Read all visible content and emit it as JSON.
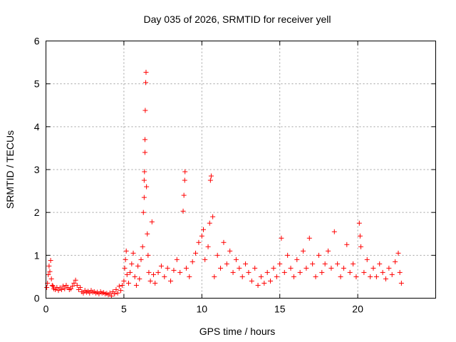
{
  "chart_data": {
    "type": "scatter",
    "title": "Day 035 of 2026, SRMTID for receiver yell",
    "xlabel": "GPS time / hours",
    "ylabel": "SRMTID / TECUs",
    "xlim": [
      0,
      25
    ],
    "ylim": [
      0,
      6
    ],
    "xticks": [
      0,
      5,
      10,
      15,
      20
    ],
    "yticks": [
      0,
      1,
      2,
      3,
      4,
      5,
      6
    ],
    "grid": true,
    "marker": "plus",
    "series_color": "#ff0000",
    "series": [
      {
        "name": "SRMTID",
        "points": [
          [
            0.05,
            0.25
          ],
          [
            0.1,
            0.35
          ],
          [
            0.15,
            0.55
          ],
          [
            0.2,
            0.75
          ],
          [
            0.25,
            0.62
          ],
          [
            0.3,
            0.88
          ],
          [
            0.35,
            0.45
          ],
          [
            0.4,
            0.3
          ],
          [
            0.45,
            0.28
          ],
          [
            0.5,
            0.22
          ],
          [
            0.6,
            0.2
          ],
          [
            0.7,
            0.25
          ],
          [
            0.8,
            0.18
          ],
          [
            0.9,
            0.24
          ],
          [
            1.0,
            0.2
          ],
          [
            1.1,
            0.28
          ],
          [
            1.2,
            0.22
          ],
          [
            1.3,
            0.3
          ],
          [
            1.4,
            0.25
          ],
          [
            1.5,
            0.2
          ],
          [
            1.6,
            0.22
          ],
          [
            1.7,
            0.28
          ],
          [
            1.8,
            0.35
          ],
          [
            1.9,
            0.42
          ],
          [
            2.0,
            0.3
          ],
          [
            2.1,
            0.2
          ],
          [
            2.2,
            0.25
          ],
          [
            2.3,
            0.15
          ],
          [
            2.4,
            0.12
          ],
          [
            2.5,
            0.18
          ],
          [
            2.6,
            0.14
          ],
          [
            2.7,
            0.16
          ],
          [
            2.8,
            0.12
          ],
          [
            2.9,
            0.18
          ],
          [
            3.0,
            0.14
          ],
          [
            3.1,
            0.15
          ],
          [
            3.2,
            0.12
          ],
          [
            3.3,
            0.14
          ],
          [
            3.4,
            0.1
          ],
          [
            3.5,
            0.15
          ],
          [
            3.6,
            0.12
          ],
          [
            3.7,
            0.13
          ],
          [
            3.8,
            0.1
          ],
          [
            3.9,
            0.11
          ],
          [
            4.0,
            0.08
          ],
          [
            4.1,
            0.12
          ],
          [
            4.2,
            0.05
          ],
          [
            4.3,
            0.15
          ],
          [
            4.4,
            0.1
          ],
          [
            4.5,
            0.2
          ],
          [
            4.6,
            0.12
          ],
          [
            4.7,
            0.28
          ],
          [
            4.8,
            0.18
          ],
          [
            4.9,
            0.3
          ],
          [
            5.0,
            0.4
          ],
          [
            5.05,
            0.7
          ],
          [
            5.1,
            0.9
          ],
          [
            5.15,
            1.1
          ],
          [
            5.2,
            0.55
          ],
          [
            5.3,
            0.35
          ],
          [
            5.4,
            0.6
          ],
          [
            5.5,
            0.8
          ],
          [
            5.6,
            1.05
          ],
          [
            5.7,
            0.5
          ],
          [
            5.8,
            0.3
          ],
          [
            5.9,
            0.75
          ],
          [
            6.0,
            0.45
          ],
          [
            6.1,
            0.9
          ],
          [
            6.2,
            1.2
          ],
          [
            6.25,
            2.0
          ],
          [
            6.3,
            2.35
          ],
          [
            6.3,
            2.75
          ],
          [
            6.32,
            2.95
          ],
          [
            6.35,
            3.4
          ],
          [
            6.35,
            3.7
          ],
          [
            6.37,
            4.38
          ],
          [
            6.4,
            5.03
          ],
          [
            6.42,
            5.27
          ],
          [
            6.45,
            2.6
          ],
          [
            6.5,
            1.5
          ],
          [
            6.55,
            1.0
          ],
          [
            6.6,
            0.6
          ],
          [
            6.7,
            0.4
          ],
          [
            6.8,
            1.78
          ],
          [
            6.9,
            0.55
          ],
          [
            7.0,
            0.35
          ],
          [
            7.2,
            0.6
          ],
          [
            7.4,
            0.75
          ],
          [
            7.6,
            0.5
          ],
          [
            7.8,
            0.7
          ],
          [
            8.0,
            0.4
          ],
          [
            8.2,
            0.65
          ],
          [
            8.4,
            0.9
          ],
          [
            8.6,
            0.6
          ],
          [
            8.8,
            2.03
          ],
          [
            8.85,
            2.4
          ],
          [
            8.9,
            2.75
          ],
          [
            8.92,
            2.95
          ],
          [
            9.0,
            0.7
          ],
          [
            9.2,
            0.5
          ],
          [
            9.4,
            0.85
          ],
          [
            9.6,
            1.05
          ],
          [
            9.8,
            1.3
          ],
          [
            10.0,
            1.45
          ],
          [
            10.1,
            1.6
          ],
          [
            10.2,
            0.9
          ],
          [
            10.4,
            1.2
          ],
          [
            10.5,
            1.75
          ],
          [
            10.55,
            2.75
          ],
          [
            10.6,
            2.85
          ],
          [
            10.7,
            1.9
          ],
          [
            10.8,
            0.5
          ],
          [
            11.0,
            1.0
          ],
          [
            11.2,
            0.7
          ],
          [
            11.4,
            1.3
          ],
          [
            11.6,
            0.8
          ],
          [
            11.8,
            1.1
          ],
          [
            12.0,
            0.6
          ],
          [
            12.2,
            0.9
          ],
          [
            12.4,
            0.7
          ],
          [
            12.6,
            0.5
          ],
          [
            12.8,
            0.8
          ],
          [
            13.0,
            0.6
          ],
          [
            13.2,
            0.4
          ],
          [
            13.4,
            0.7
          ],
          [
            13.6,
            0.3
          ],
          [
            13.8,
            0.5
          ],
          [
            14.0,
            0.35
          ],
          [
            14.2,
            0.6
          ],
          [
            14.4,
            0.4
          ],
          [
            14.6,
            0.7
          ],
          [
            14.8,
            0.5
          ],
          [
            15.0,
            0.8
          ],
          [
            15.1,
            1.4
          ],
          [
            15.3,
            0.6
          ],
          [
            15.5,
            1.0
          ],
          [
            15.7,
            0.7
          ],
          [
            15.9,
            0.5
          ],
          [
            16.1,
            0.9
          ],
          [
            16.3,
            0.6
          ],
          [
            16.5,
            1.1
          ],
          [
            16.7,
            0.7
          ],
          [
            16.9,
            1.4
          ],
          [
            17.1,
            0.8
          ],
          [
            17.3,
            0.5
          ],
          [
            17.5,
            1.0
          ],
          [
            17.7,
            0.6
          ],
          [
            17.9,
            0.8
          ],
          [
            18.1,
            1.1
          ],
          [
            18.3,
            0.7
          ],
          [
            18.5,
            1.55
          ],
          [
            18.7,
            0.8
          ],
          [
            18.9,
            0.5
          ],
          [
            19.1,
            0.7
          ],
          [
            19.3,
            1.25
          ],
          [
            19.5,
            0.6
          ],
          [
            19.7,
            0.8
          ],
          [
            19.9,
            0.5
          ],
          [
            20.1,
            1.75
          ],
          [
            20.15,
            1.45
          ],
          [
            20.2,
            1.2
          ],
          [
            20.4,
            0.6
          ],
          [
            20.6,
            0.9
          ],
          [
            20.8,
            0.5
          ],
          [
            21.0,
            0.7
          ],
          [
            21.2,
            0.5
          ],
          [
            21.4,
            0.8
          ],
          [
            21.6,
            0.6
          ],
          [
            21.8,
            0.45
          ],
          [
            22.0,
            0.7
          ],
          [
            22.2,
            0.55
          ],
          [
            22.4,
            0.85
          ],
          [
            22.6,
            1.05
          ],
          [
            22.7,
            0.6
          ],
          [
            22.8,
            0.35
          ]
        ]
      }
    ]
  }
}
